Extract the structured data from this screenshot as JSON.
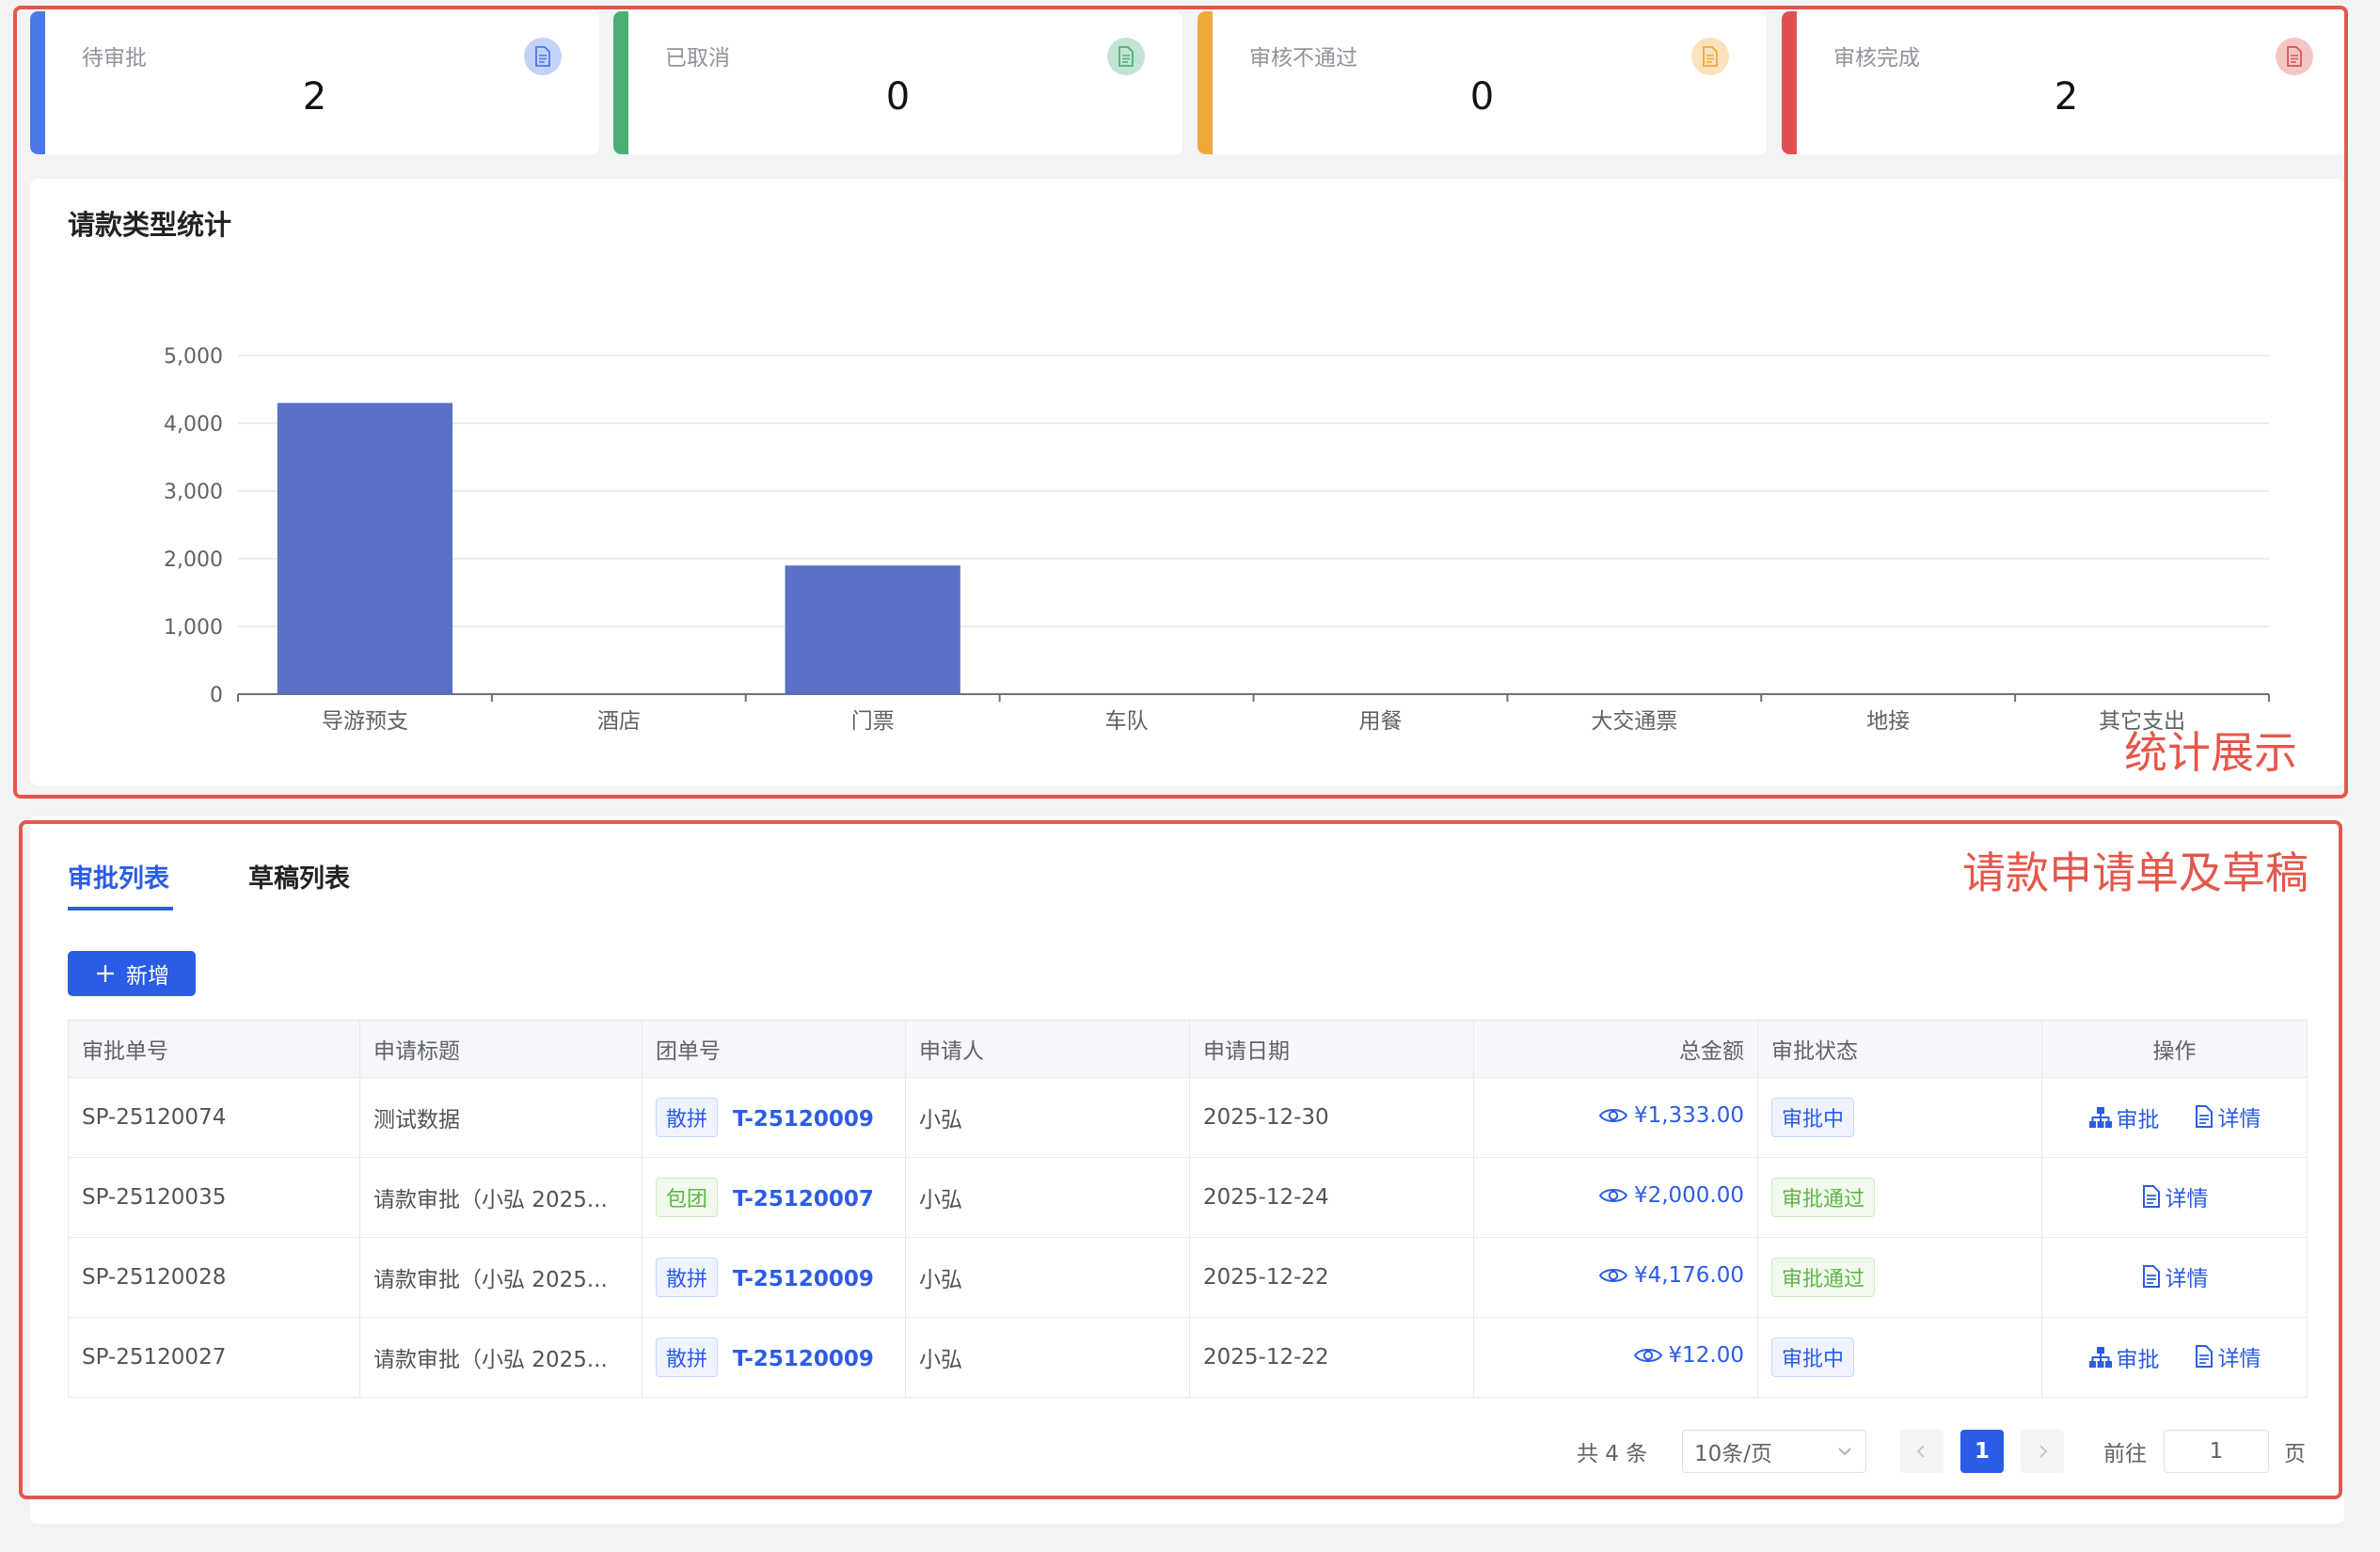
{
  "stats": [
    {
      "label": "待审批",
      "value": "2",
      "color": "#4a78e8",
      "icon": "document-icon"
    },
    {
      "label": "已取消",
      "value": "0",
      "color": "#4caf7a",
      "icon": "document-icon"
    },
    {
      "label": "审核不通过",
      "value": "0",
      "color": "#f0a83a",
      "icon": "document-icon"
    },
    {
      "label": "审核完成",
      "value": "2",
      "color": "#e05050",
      "icon": "document-icon"
    }
  ],
  "annotations": {
    "stats_label": "统计展示",
    "list_label": "请款申请单及草稿"
  },
  "chart": {
    "title": "请款类型统计"
  },
  "chart_data": {
    "type": "bar",
    "categories": [
      "导游预支",
      "酒店",
      "门票",
      "车队",
      "用餐",
      "大交通票",
      "地接",
      "其它支出"
    ],
    "values": [
      4300,
      0,
      1900,
      0,
      0,
      0,
      0,
      0
    ],
    "title": "请款类型统计",
    "xlabel": "",
    "ylabel": "",
    "ylim": [
      0,
      5000
    ],
    "yticks": [
      "0",
      "1,000",
      "2,000",
      "3,000",
      "4,000",
      "5,000"
    ],
    "grid": true,
    "bar_color": "#5b6fc4"
  },
  "tabs": [
    {
      "label": "审批列表",
      "active": true
    },
    {
      "label": "草稿列表",
      "active": false
    }
  ],
  "add_button": {
    "label": "新增",
    "icon": "plus-icon"
  },
  "table": {
    "columns": [
      "审批单号",
      "申请标题",
      "团单号",
      "申请人",
      "申请日期",
      "总金额",
      "审批状态",
      "操作"
    ],
    "rows": [
      {
        "id": "SP-25120074",
        "title": "测试数据",
        "type": "散拼",
        "type_style": "blue",
        "group": "T-25120009",
        "applicant": "小弘",
        "date": "2025-12-30",
        "amount": "¥1,333.00",
        "status": "审批中",
        "status_style": "blue",
        "ops": [
          "审批",
          "详情"
        ]
      },
      {
        "id": "SP-25120035",
        "title": "请款审批（小弘 2025...",
        "type": "包团",
        "type_style": "green",
        "group": "T-25120007",
        "applicant": "小弘",
        "date": "2025-12-24",
        "amount": "¥2,000.00",
        "status": "审批通过",
        "status_style": "green",
        "ops": [
          "详情"
        ]
      },
      {
        "id": "SP-25120028",
        "title": "请款审批（小弘 2025...",
        "type": "散拼",
        "type_style": "blue",
        "group": "T-25120009",
        "applicant": "小弘",
        "date": "2025-12-22",
        "amount": "¥4,176.00",
        "status": "审批通过",
        "status_style": "green",
        "ops": [
          "详情"
        ]
      },
      {
        "id": "SP-25120027",
        "title": "请款审批（小弘 2025...",
        "type": "散拼",
        "type_style": "blue",
        "group": "T-25120009",
        "applicant": "小弘",
        "date": "2025-12-22",
        "amount": "¥12.00",
        "status": "审批中",
        "status_style": "blue",
        "ops": [
          "审批",
          "详情"
        ]
      }
    ]
  },
  "pagination": {
    "total_text": "共 4 条",
    "page_size": "10条/页",
    "current_page": "1",
    "goto_label": "前往",
    "goto_value": "1",
    "page_suffix": "页"
  }
}
